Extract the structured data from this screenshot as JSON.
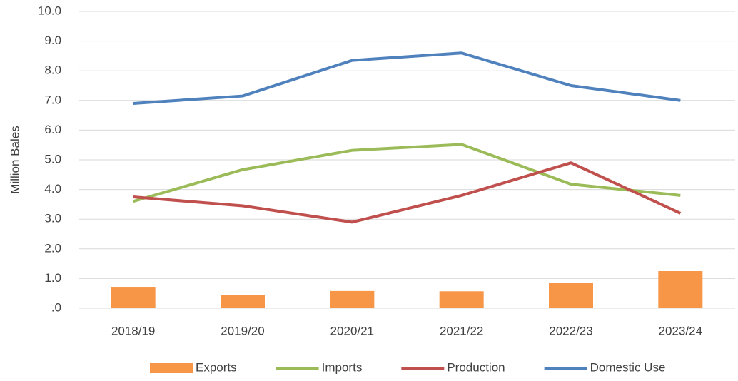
{
  "chart_data": {
    "type": "combo",
    "y_label": "Million Bales",
    "categories": [
      "2018/19",
      "2019/20",
      "2020/21",
      "2021/22",
      "2022/23",
      "2023/24"
    ],
    "series": [
      {
        "name": "Exports",
        "type": "bar",
        "color": "#f79646",
        "values": [
          0.72,
          0.45,
          0.58,
          0.57,
          0.86,
          1.25
        ]
      },
      {
        "name": "Imports",
        "type": "line",
        "color": "#9bbb59",
        "values": [
          3.6,
          4.67,
          5.32,
          5.52,
          4.18,
          3.8
        ]
      },
      {
        "name": "Production",
        "type": "line",
        "color": "#c0504d",
        "values": [
          3.75,
          3.45,
          2.9,
          3.8,
          4.9,
          3.2
        ]
      },
      {
        "name": "Domestic Use",
        "type": "line",
        "color": "#4f81bd",
        "values": [
          6.9,
          7.15,
          8.35,
          8.6,
          7.5,
          7.0
        ]
      }
    ],
    "ylim": [
      0,
      10
    ],
    "yticks": [
      {
        "value": 0,
        "label": ".0"
      },
      {
        "value": 1,
        "label": "1.0"
      },
      {
        "value": 2,
        "label": "2.0"
      },
      {
        "value": 3,
        "label": "3.0"
      },
      {
        "value": 4,
        "label": "4.0"
      },
      {
        "value": 5,
        "label": "5.0"
      },
      {
        "value": 6,
        "label": "6.0"
      },
      {
        "value": 7,
        "label": "7.0"
      },
      {
        "value": 8,
        "label": "8.0"
      },
      {
        "value": 9,
        "label": "9.0"
      },
      {
        "value": 10,
        "label": "10.0"
      }
    ],
    "grid": true,
    "legend": "bottom"
  }
}
